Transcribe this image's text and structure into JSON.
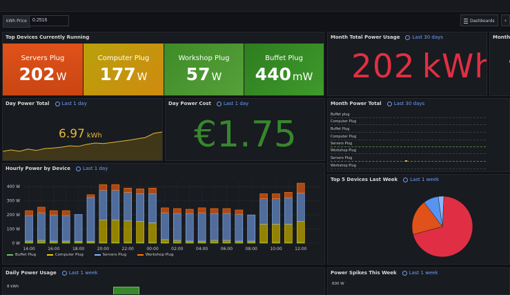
{
  "variables": {
    "label": "kWh Price",
    "value": "0.2516"
  },
  "nav": {
    "dashboards_label": "Dashboards",
    "back_icon": "chevron-left-icon"
  },
  "top_devices": {
    "title": "Top Devices Currently Running",
    "tiles": [
      {
        "name": "Servers Plug",
        "value": "202",
        "unit": "W",
        "color": "#e0521a"
      },
      {
        "name": "Computer Plug",
        "value": "177",
        "unit": "W",
        "color": "#b8a10a"
      },
      {
        "name": "Workshop Plug",
        "value": "57",
        "unit": "W",
        "color": "#3e8c27"
      },
      {
        "name": "Buffet Plug",
        "value": "440",
        "unit": "mW",
        "color": "#2e7d1f"
      }
    ]
  },
  "month_total_usage": {
    "title": "Month Total Power Usage",
    "time": "Last 30 days",
    "value": "202",
    "unit": "kWh"
  },
  "month_cut": {
    "title": "Month T"
  },
  "day_power_total": {
    "title": "Day Power Total",
    "time": "Last 1 day",
    "value": "6.97",
    "unit": "kWh"
  },
  "day_power_cost": {
    "title": "Day Power Cost",
    "time": "Last 1 day",
    "value": "€1.75"
  },
  "month_power_total": {
    "title": "Month Power Total",
    "time": "Last 30 days",
    "rows": [
      "Buffet plug",
      "Computer Plug",
      "Buffet Plug",
      "Computer Plug",
      "Servers Plug",
      "Workshop Plug",
      "Servers Plug",
      "Workshop Plug"
    ]
  },
  "hourly": {
    "title": "Hourly Power by Device",
    "time": "Last 1 day",
    "legend": [
      {
        "name": "Buffet Plug",
        "color": "#73bf69"
      },
      {
        "name": "Computer Plug",
        "color": "#f2cc0c"
      },
      {
        "name": "Servers Plug",
        "color": "#8ab8ff"
      },
      {
        "name": "Workshop Plug",
        "color": "#ff780a"
      }
    ]
  },
  "top5": {
    "title": "Top 5 Devices Last Week",
    "time": "Last 1 week"
  },
  "daily": {
    "title": "Daily Power Usage",
    "time": "Last 1 week",
    "ylabel": "8 kWh"
  },
  "spikes": {
    "title": "Power Spikes This Week",
    "time": "Last 1 week",
    "ylabel": "600 W"
  },
  "chart_data": [
    {
      "type": "bar",
      "title": "Hourly Power by Device",
      "x": [
        "14:00",
        "15:00",
        "16:00",
        "17:00",
        "18:00",
        "19:00",
        "20:00",
        "21:00",
        "22:00",
        "23:00",
        "00:00",
        "01:00",
        "02:00",
        "03:00",
        "04:00",
        "05:00",
        "06:00",
        "07:00",
        "08:00",
        "09:00",
        "10:00",
        "11:00",
        "12:00"
      ],
      "xticks": [
        "14:00",
        "16:00",
        "18:00",
        "20:00",
        "22:00",
        "00:00",
        "02:00",
        "04:00",
        "06:00",
        "08:00",
        "10:00",
        "12:00"
      ],
      "yticks": [
        "400 W",
        "300 W",
        "200 W",
        "100 W",
        "0 W"
      ],
      "ylim": [
        0,
        440
      ],
      "stacked": true,
      "series": [
        {
          "name": "Buffet Plug",
          "values": [
            5,
            5,
            5,
            5,
            5,
            5,
            5,
            5,
            5,
            5,
            5,
            5,
            5,
            5,
            5,
            5,
            5,
            5,
            5,
            5,
            5,
            5,
            5
          ]
        },
        {
          "name": "Computer Plug",
          "values": [
            10,
            15,
            10,
            10,
            8,
            8,
            160,
            160,
            155,
            150,
            140,
            20,
            15,
            10,
            10,
            15,
            15,
            10,
            10,
            130,
            130,
            130,
            150
          ]
        },
        {
          "name": "Servers Plug",
          "values": [
            180,
            195,
            185,
            180,
            190,
            310,
            210,
            210,
            200,
            195,
            205,
            190,
            190,
            195,
            200,
            190,
            190,
            190,
            185,
            180,
            180,
            185,
            200
          ]
        },
        {
          "name": "Workshop Plug",
          "values": [
            35,
            40,
            30,
            35,
            0,
            20,
            40,
            40,
            30,
            35,
            40,
            35,
            35,
            30,
            35,
            35,
            35,
            30,
            0,
            35,
            35,
            40,
            70
          ]
        }
      ]
    },
    {
      "type": "area",
      "title": "Day Power Total",
      "values": [
        0.3,
        0.35,
        0.3,
        0.38,
        0.33,
        0.4,
        0.42,
        0.45,
        0.5,
        0.48,
        0.55,
        0.6,
        0.58,
        0.62,
        0.66,
        0.7,
        0.75,
        0.8,
        0.95,
        1.0
      ],
      "color": "#eab839"
    },
    {
      "type": "pie",
      "title": "Top 5 Devices Last Week",
      "slices": [
        {
          "value": 70,
          "color": "#e02f44"
        },
        {
          "value": 19,
          "color": "#e0521a"
        },
        {
          "value": 8,
          "color": "#5794f2"
        },
        {
          "value": 3,
          "color": "#8ab8ff"
        }
      ]
    }
  ]
}
